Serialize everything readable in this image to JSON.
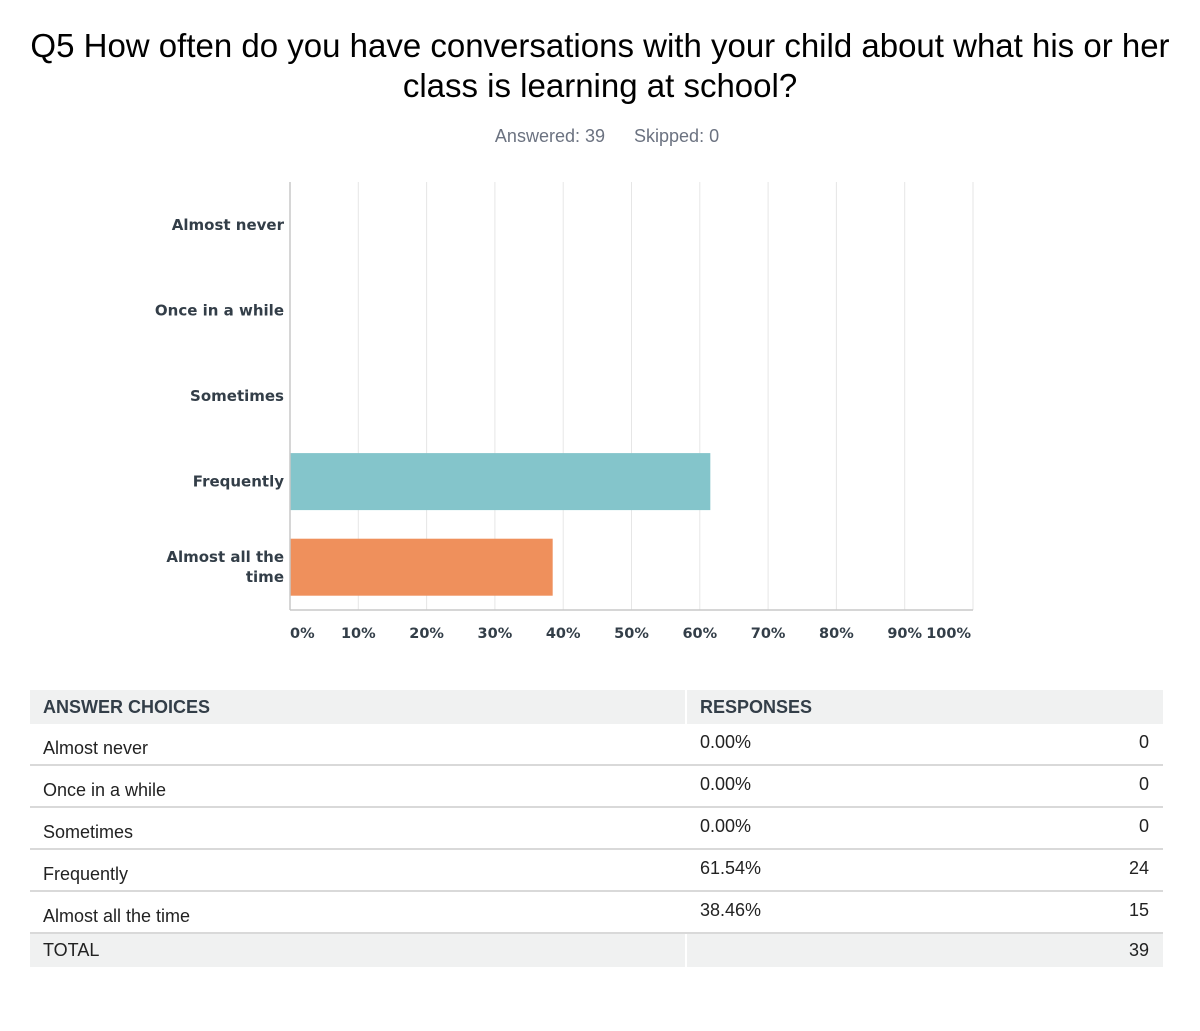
{
  "title": "Q5 How often do you have conversations with your child about what his or her class is learning at school?",
  "answered": "Answered: 39",
  "skipped": "Skipped: 0",
  "colors": {
    "frequently": "#84c5cb",
    "almost_all": "#ef905c",
    "grid": "#e6e6e6",
    "axis": "#c8c8c8"
  },
  "chart_data": {
    "type": "bar",
    "orientation": "horizontal",
    "categories": [
      "Almost never",
      "Once in a while",
      "Sometimes",
      "Frequently",
      "Almost all the time"
    ],
    "category_lines": [
      [
        "Almost never"
      ],
      [
        "Once in a while"
      ],
      [
        "Sometimes"
      ],
      [
        "Frequently"
      ],
      [
        "Almost all the",
        "time"
      ]
    ],
    "values": [
      0.0,
      0.0,
      0.0,
      61.54,
      38.46
    ],
    "xlim": [
      0,
      100
    ],
    "x_ticks": [
      "0%",
      "10%",
      "20%",
      "30%",
      "40%",
      "50%",
      "60%",
      "70%",
      "80%",
      "90%",
      "100%"
    ],
    "grid": true
  },
  "table": {
    "headers": {
      "choices": "ANSWER CHOICES",
      "responses": "RESPONSES"
    },
    "rows": [
      {
        "choice": "Almost never",
        "percent": "0.00%",
        "count": "0"
      },
      {
        "choice": "Once in a while",
        "percent": "0.00%",
        "count": "0"
      },
      {
        "choice": "Sometimes",
        "percent": "0.00%",
        "count": "0"
      },
      {
        "choice": "Frequently",
        "percent": "61.54%",
        "count": "24"
      },
      {
        "choice": "Almost all the time",
        "percent": "38.46%",
        "count": "15"
      }
    ],
    "total_label": "TOTAL",
    "total_count": "39"
  }
}
